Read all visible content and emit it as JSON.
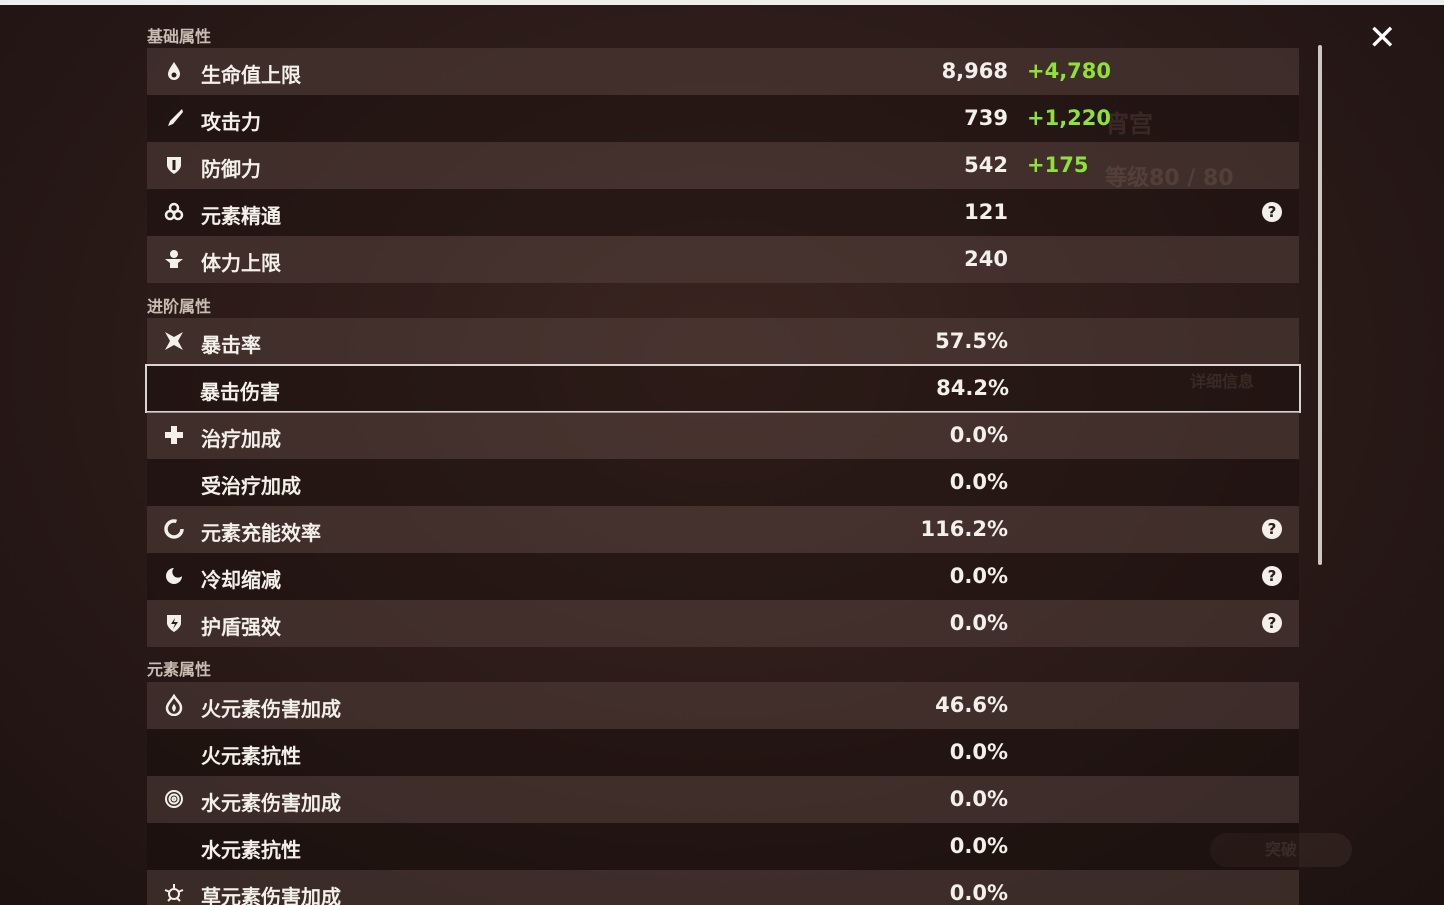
{
  "background": {
    "name": "宵宫",
    "level": "等级80 / 80",
    "details": "详细信息",
    "ascend": "突破"
  },
  "close": "✕",
  "sections": [
    {
      "title": "基础属性",
      "rows": [
        {
          "label": "生命值上限",
          "value": "8,968",
          "bonus": "+4,780"
        },
        {
          "label": "攻击力",
          "value": "739",
          "bonus": "+1,220"
        },
        {
          "label": "防御力",
          "value": "542",
          "bonus": "+175"
        },
        {
          "label": "元素精通",
          "value": "121",
          "help": "?"
        },
        {
          "label": "体力上限",
          "value": "240"
        }
      ]
    },
    {
      "title": "进阶属性",
      "rows": [
        {
          "label": "暴击率",
          "value": "57.5%"
        },
        {
          "label": "暴击伤害",
          "value": "84.2%",
          "selected": true
        },
        {
          "label": "治疗加成",
          "value": "0.0%"
        },
        {
          "label": "受治疗加成",
          "value": "0.0%"
        },
        {
          "label": "元素充能效率",
          "value": "116.2%",
          "help": "?"
        },
        {
          "label": "冷却缩减",
          "value": "0.0%",
          "help": "?"
        },
        {
          "label": "护盾强效",
          "value": "0.0%",
          "help": "?"
        }
      ]
    },
    {
      "title": "元素属性",
      "rows": [
        {
          "label": "火元素伤害加成",
          "value": "46.6%"
        },
        {
          "label": "火元素抗性",
          "value": "0.0%"
        },
        {
          "label": "水元素伤害加成",
          "value": "0.0%"
        },
        {
          "label": "水元素抗性",
          "value": "0.0%"
        },
        {
          "label": "草元素伤害加成",
          "value": "0.0%"
        }
      ]
    }
  ]
}
